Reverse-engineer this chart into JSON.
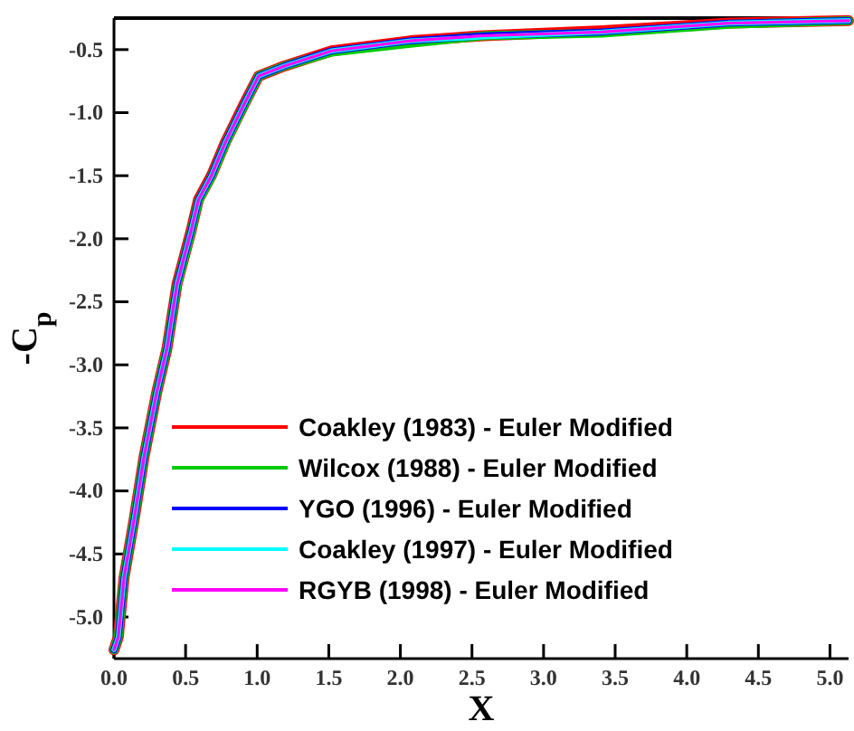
{
  "chart_data": {
    "type": "line",
    "xlabel": "X",
    "ylabel": "-C$_{p}$",
    "xlim": [
      0,
      5.13
    ],
    "ylim": [
      -5.33,
      -0.25
    ],
    "xticks": [
      {
        "value": 0,
        "label": "0.0"
      },
      0.5,
      {
        "value": 1,
        "label": "1.0"
      },
      1.5,
      {
        "value": 2,
        "label": "2.0"
      },
      2.5,
      {
        "value": 3,
        "label": "3.0"
      },
      3.5,
      {
        "value": 4,
        "label": "4.0"
      },
      4.5,
      {
        "value": 5,
        "label": "5.0"
      }
    ],
    "yticks": [
      -0.5,
      {
        "value": -1,
        "label": "-1.0"
      },
      -1.5,
      {
        "value": -2,
        "label": "-2.0"
      },
      -2.5,
      {
        "value": -3,
        "label": "-3.0"
      },
      -3.5,
      {
        "value": -4,
        "label": "-4.0"
      },
      -4.5,
      {
        "value": -5,
        "label": "-5.0"
      }
    ],
    "x": [
      0,
      0.03,
      0.07,
      0.14,
      0.21,
      0.3,
      0.37,
      0.44,
      0.54,
      0.59,
      0.68,
      0.78,
      0.91,
      1.01,
      1.19,
      1.52,
      2.07,
      2.58,
      3.41,
      4.29,
      5.13
    ],
    "series": [
      {
        "name": "Coakley (1983) - Euler Modified",
        "color": "#ff0000",
        "values": [
          -5.26,
          -5.16,
          -4.69,
          -4.23,
          -3.73,
          -3.21,
          -2.87,
          -2.36,
          -1.93,
          -1.69,
          -1.5,
          -1.23,
          -0.93,
          -0.71,
          -0.63,
          -0.51,
          -0.43,
          -0.39,
          -0.35,
          -0.29,
          -0.27
        ]
      },
      {
        "name": "Wilcox (1988) - Euler Modified",
        "color": "#00cc00",
        "values": [
          -5.26,
          -5.16,
          -4.69,
          -4.23,
          -3.73,
          -3.21,
          -2.87,
          -2.37,
          -1.94,
          -1.7,
          -1.51,
          -1.24,
          -0.94,
          -0.71,
          -0.63,
          -0.52,
          -0.45,
          -0.39,
          -0.37,
          -0.3,
          -0.27
        ]
      },
      {
        "name": "YGO (1996) - Euler Modified",
        "color": "#0000ff",
        "values": [
          -5.26,
          -5.16,
          -4.69,
          -4.23,
          -3.73,
          -3.21,
          -2.87,
          -2.36,
          -1.93,
          -1.69,
          -1.5,
          -1.23,
          -0.93,
          -0.71,
          -0.63,
          -0.51,
          -0.43,
          -0.39,
          -0.36,
          -0.29,
          -0.27
        ]
      },
      {
        "name": "Coakley (1997) - Euler Modified",
        "color": "#00ffff",
        "values": [
          -5.26,
          -5.16,
          -4.69,
          -4.23,
          -3.73,
          -3.21,
          -2.87,
          -2.36,
          -1.93,
          -1.69,
          -1.5,
          -1.23,
          -0.93,
          -0.71,
          -0.63,
          -0.51,
          -0.43,
          -0.4,
          -0.36,
          -0.29,
          -0.27
        ]
      },
      {
        "name": "RGYB (1998) - Euler Modified",
        "color": "#ff00ff",
        "values": [
          -5.26,
          -5.16,
          -4.69,
          -4.23,
          -3.73,
          -3.21,
          -2.87,
          -2.36,
          -1.93,
          -1.69,
          -1.5,
          -1.23,
          -0.93,
          -0.71,
          -0.63,
          -0.51,
          -0.43,
          -0.39,
          -0.36,
          -0.29,
          -0.27
        ]
      }
    ],
    "legend": "bottom left",
    "grid": false,
    "marker": "none",
    "line_style": "solid"
  }
}
